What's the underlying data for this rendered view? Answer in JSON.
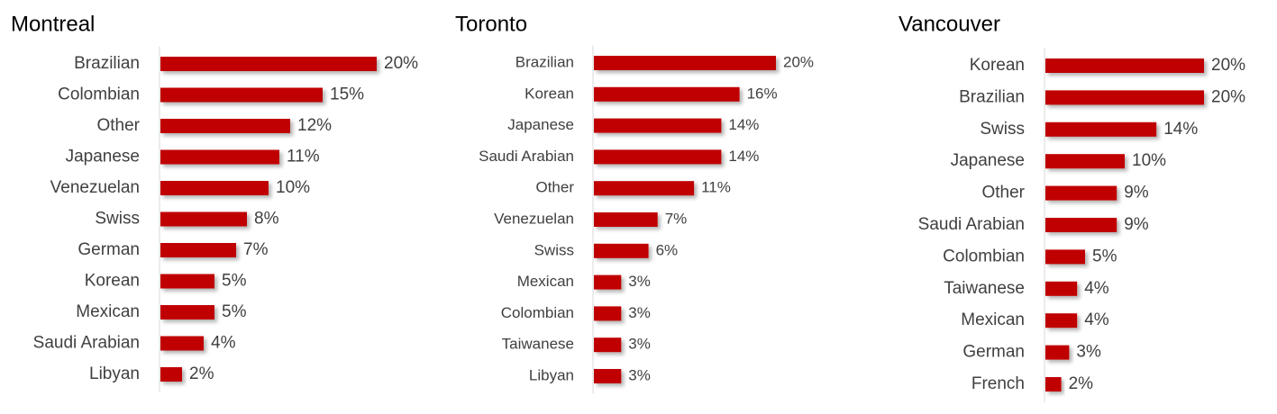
{
  "chart_data": [
    {
      "type": "bar",
      "title": "Montreal",
      "color": "#c00000",
      "categories": [
        "Brazilian",
        "Colombian",
        "Other",
        "Japanese",
        "Venezuelan",
        "Swiss",
        "German",
        "Korean",
        "Mexican",
        "Saudi Arabian",
        "Libyan"
      ],
      "values": [
        20,
        15,
        12,
        11,
        10,
        8,
        7,
        5,
        5,
        4,
        2
      ],
      "value_labels": [
        "20%",
        "15%",
        "12%",
        "11%",
        "10%",
        "8%",
        "7%",
        "5%",
        "5%",
        "4%",
        "2%"
      ]
    },
    {
      "type": "bar",
      "title": "Toronto",
      "color": "#c00000",
      "categories": [
        "Brazilian",
        "Korean",
        "Japanese",
        "Saudi Arabian",
        "Other",
        "Venezuelan",
        "Swiss",
        "Mexican",
        "Colombian",
        "Taiwanese",
        "Libyan"
      ],
      "values": [
        20,
        16,
        14,
        14,
        11,
        7,
        6,
        3,
        3,
        3,
        3
      ],
      "value_labels": [
        "20%",
        "16%",
        "14%",
        "14%",
        "11%",
        "7%",
        "6%",
        "3%",
        "3%",
        "3%",
        "3%"
      ]
    },
    {
      "type": "bar",
      "title": "Vancouver",
      "color": "#c00000",
      "categories": [
        "Korean",
        "Brazilian",
        "Swiss",
        "Japanese",
        "Other",
        "Saudi Arabian",
        "Colombian",
        "Taiwanese",
        "Mexican",
        "German",
        "French"
      ],
      "values": [
        20,
        20,
        14,
        10,
        9,
        9,
        5,
        4,
        4,
        3,
        2
      ],
      "value_labels": [
        "20%",
        "20%",
        "14%",
        "10%",
        "9%",
        "9%",
        "5%",
        "4%",
        "4%",
        "3%",
        "2%"
      ]
    }
  ]
}
